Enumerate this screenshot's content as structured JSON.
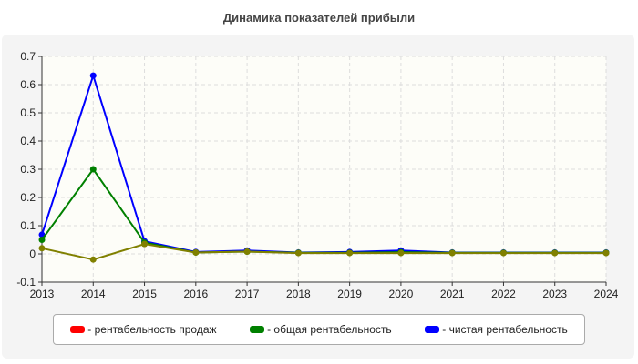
{
  "chart_data": {
    "type": "line",
    "title": "Динамика показателей прибыли",
    "x": [
      2013,
      2014,
      2015,
      2016,
      2017,
      2018,
      2019,
      2020,
      2021,
      2022,
      2023,
      2024
    ],
    "ylim": [
      -0.1,
      0.7
    ],
    "yticks": [
      "-0.1",
      "0",
      "0.1",
      "0.2",
      "0.3",
      "0.4",
      "0.5",
      "0.6",
      "0.7"
    ],
    "grid": true,
    "legend_placement": "bottom",
    "series": [
      {
        "name": "- рентабельность продаж",
        "color": "#ff0000",
        "values": [
          0.02,
          -0.02,
          0.035,
          0.005,
          0.008,
          0.003,
          0.003,
          0.003,
          0.003,
          0.003,
          0.003,
          0.003
        ]
      },
      {
        "name": "- общая рентабельность",
        "color": "#008000",
        "values": [
          0.05,
          0.3,
          0.04,
          0.005,
          0.008,
          0.004,
          0.004,
          0.006,
          0.004,
          0.004,
          0.004,
          0.004
        ]
      },
      {
        "name": "- чистая рентабельность",
        "color": "#0000ff",
        "values": [
          0.068,
          0.632,
          0.045,
          0.007,
          0.012,
          0.005,
          0.007,
          0.012,
          0.005,
          0.005,
          0.005,
          0.005
        ]
      }
    ]
  }
}
